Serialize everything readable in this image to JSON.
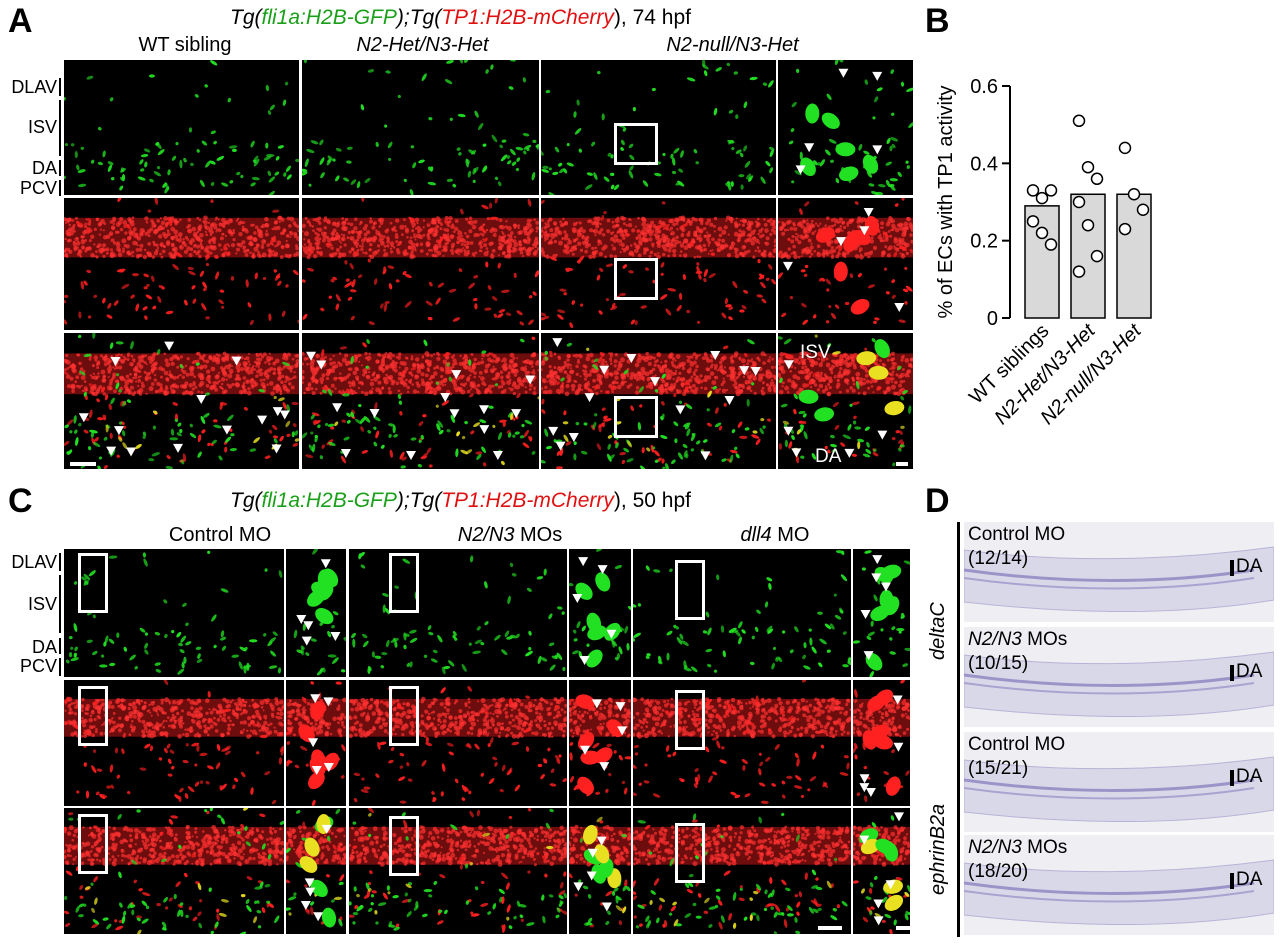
{
  "panel_labels": {
    "a": "A",
    "b": "B",
    "c": "C",
    "d": "D"
  },
  "panel_a": {
    "title": {
      "prefix": "Tg(",
      "gene1": "fli1a:H2B-GFP",
      "mid": ");Tg(",
      "gene2": "TP1:H2B-mCherry",
      "suffix": "), 74 hpf"
    },
    "columns": [
      "WT sibling",
      "N2-Het/N3-Het",
      "N2-null/N3-Het"
    ],
    "row_labels": [
      "DLAV",
      "ISV",
      "DA",
      "PCV"
    ],
    "inset_labels": [
      "ISV",
      "DA"
    ]
  },
  "panel_b": {
    "chart_data": {
      "type": "bar",
      "categories": [
        "WT siblings",
        "N2-Het/N3-Het",
        "N2-null/N3-Het"
      ],
      "values": [
        0.29,
        0.32,
        0.32
      ],
      "points": [
        [
          0.33,
          0.31,
          0.33,
          0.25,
          0.22,
          0.19
        ],
        [
          0.51,
          0.39,
          0.36,
          0.3,
          0.24,
          0.16,
          0.12
        ],
        [
          0.44,
          0.32,
          0.28,
          0.23
        ]
      ],
      "ylabel": "% of ECs with TP1 activity",
      "ylim": [
        0,
        0.6
      ],
      "yticks": [
        "0",
        "0.2",
        "0.4",
        "0.6"
      ],
      "bar_color": "#d9d9d9",
      "grid": false
    }
  },
  "panel_c": {
    "title": {
      "prefix": "Tg(",
      "gene1": "fli1a:H2B-GFP",
      "mid": ");Tg(",
      "gene2": "TP1:H2B-mCherry",
      "suffix": "), 50 hpf"
    },
    "columns": [
      {
        "name": "Control MO",
        "italic": "",
        "rest": ""
      },
      {
        "name": "",
        "italic": "N2/N3",
        "rest": " MOs"
      },
      {
        "name": "",
        "italic": "dll4",
        "rest": " MO"
      }
    ],
    "row_labels": [
      "DLAV",
      "ISV",
      "DA",
      "PCV"
    ]
  },
  "panel_d": {
    "probes": [
      "deltaC",
      "ephrinB2a"
    ],
    "images": [
      {
        "condition": "Control MO",
        "count": "(12/14)",
        "italic": false
      },
      {
        "condition": "N2/N3 MOs",
        "count": "(10/15)",
        "italic": true
      },
      {
        "condition": "Control MO",
        "count": "(15/21)",
        "italic": false
      },
      {
        "condition": "N2/N3 MOs",
        "count": "(18/20)",
        "italic": true
      }
    ],
    "marker": "DA"
  },
  "colors": {
    "gfp": "#22e022",
    "mcherry": "#ff2020",
    "merge": "#e8e020",
    "bar": "#d9d9d9"
  }
}
